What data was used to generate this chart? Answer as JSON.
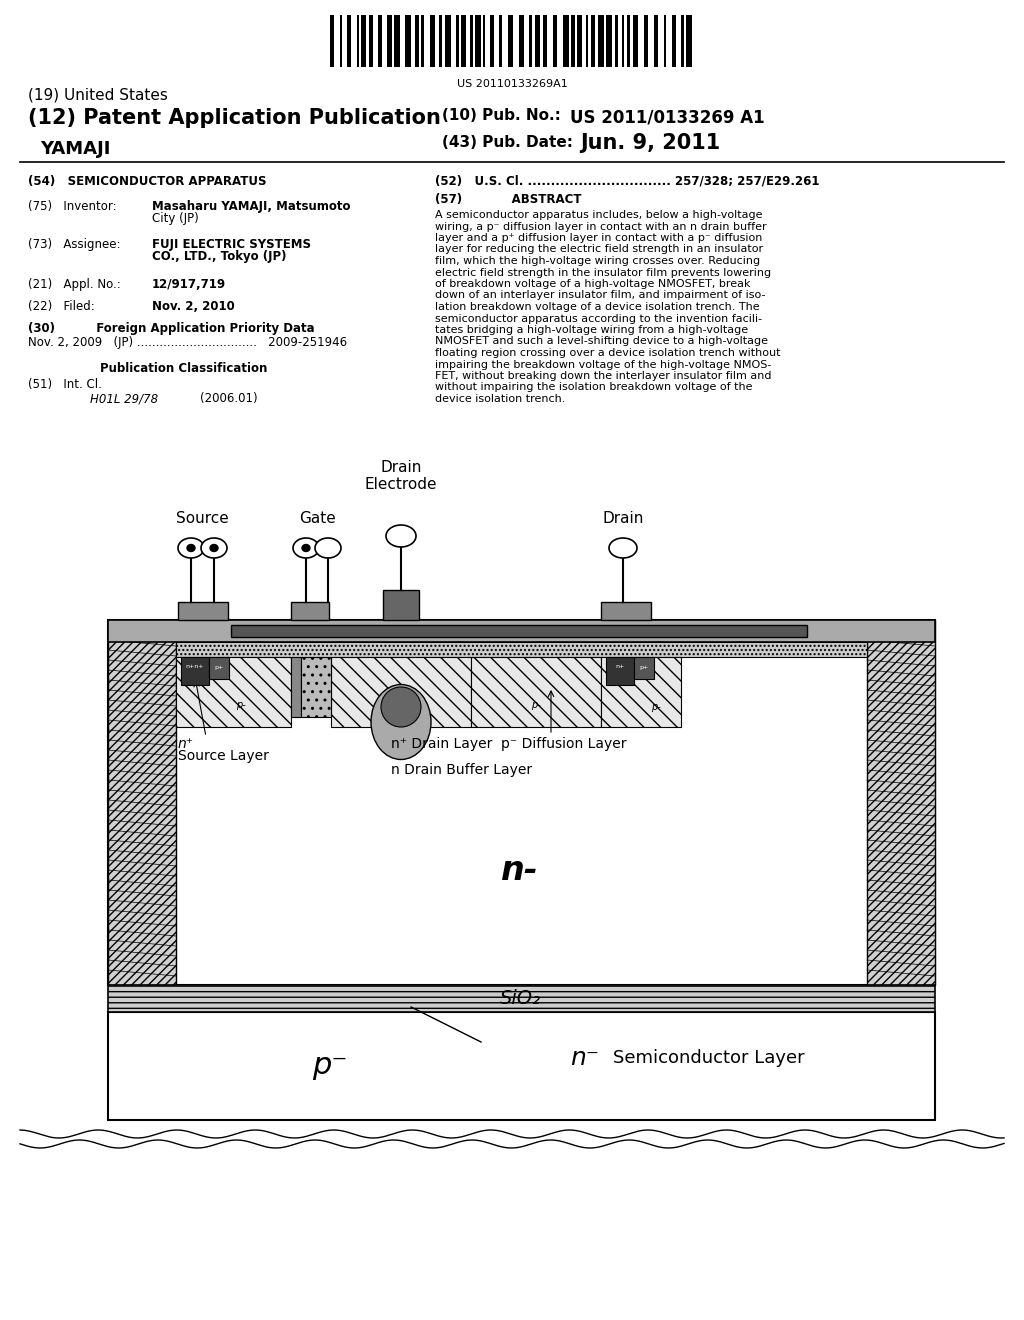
{
  "bg_color": "#ffffff",
  "barcode_text": "US 20110133269A1",
  "title_19": "(19) United States",
  "title_12": "(12) Patent Application Publication",
  "pub_no_label": "(10) Pub. No.:",
  "pub_no_val": "US 2011/0133269 A1",
  "inventor_name": "YAMAJI",
  "pub_date_label": "(43) Pub. Date:",
  "pub_date_val": "Jun. 9, 2011",
  "field54": "(54)   SEMICONDUCTOR APPARATUS",
  "field52_label": "(52)   U.S. Cl. ...............................",
  "field52_val": "257/328; 257/E29.261",
  "field57": "(57)            ABSTRACT",
  "abstract_lines": [
    "A semiconductor apparatus includes, below a high-voltage",
    "wiring, a p⁻ diffusion layer in contact with an n drain buffer",
    "layer and a p⁺ diffusion layer in contact with a p⁻ diffusion",
    "layer for reducing the electric field strength in an insulator",
    "film, which the high-voltage wiring crosses over. Reducing",
    "electric field strength in the insulator film prevents lowering",
    "of breakdown voltage of a high-voltage NMOSFET, break",
    "down of an interlayer insulator film, and impairment of iso-",
    "lation breakdown voltage of a device isolation trench. The",
    "semiconductor apparatus according to the invention facili-",
    "tates bridging a high-voltage wiring from a high-voltage",
    "NMOSFET and such a level-shifting device to a high-voltage",
    "floating region crossing over a device isolation trench without",
    "impairing the breakdown voltage of the high-voltage NMOS-",
    "FET, without breaking down the interlayer insulator film and",
    "without impairing the isolation breakdown voltage of the",
    "device isolation trench."
  ],
  "field75_label": "(75)   Inventor:",
  "field75_val1": "Masaharu YAMAJI, Matsumoto",
  "field75_val2": "City (JP)",
  "field73_label": "(73)   Assignee:",
  "field73_val1": "FUJI ELECTRIC SYSTEMS",
  "field73_val2": "CO., LTD., Tokyo (JP)",
  "field21_label": "(21)   Appl. No.:",
  "field21_val": "12/917,719",
  "field22_label": "(22)   Filed:",
  "field22_val": "Nov. 2, 2010",
  "field30": "(30)          Foreign Application Priority Data",
  "field30_data": "Nov. 2, 2009   (JP) ................................   2009-251946",
  "pub_class": "Publication Classification",
  "field51_label": "(51)   Int. Cl.",
  "field51_val1": "H01L 29/78",
  "field51_val2": "(2006.01)"
}
